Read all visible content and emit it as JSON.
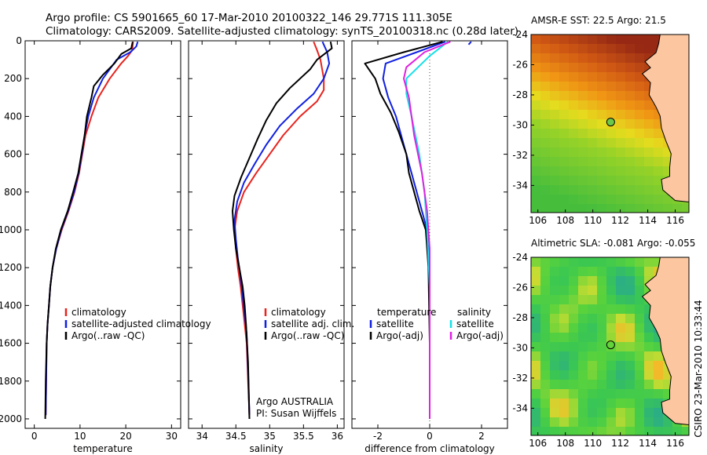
{
  "header": {
    "title_line1": "Argo profile: CS 5901665_60 17-Mar-2010 20100322_146 29.771S 111.305E",
    "title_line2": "Climatology: CARS2009. Satellite-adjusted climatology: synTS_20100318.nc (0.28d later)"
  },
  "side_credit": "CSIRO 23-Mar-2010 10:33:44",
  "colors": {
    "climatology": "#e8231e",
    "satellite": "#1020e0",
    "argo": "#000000",
    "satellite_salinity": "#14e0e8",
    "argo_salinity_adj": "#e020e0",
    "land": "#fbc6a0"
  },
  "chart_data": [
    {
      "type": "line",
      "id": "temperature",
      "xlabel": "temperature",
      "ylabel": "",
      "xlim": [
        -2,
        32
      ],
      "ylim": [
        2050,
        0
      ],
      "xticks": [
        0,
        10,
        20,
        30
      ],
      "yticks": [
        0,
        200,
        400,
        600,
        800,
        1000,
        1200,
        1400,
        1600,
        1800,
        2000
      ],
      "legend": [
        "climatology",
        "satellite-adjusted climatology",
        "Argo(..raw -QC)"
      ],
      "legend_placement": "lower-right",
      "series": [
        {
          "name": "climatology",
          "color": "#e8231e",
          "x": [
            21.6,
            21.4,
            20.5,
            19.0,
            16.5,
            14.0,
            12.5,
            11.2,
            10.5,
            9.8,
            8.8,
            7.5,
            6.0,
            4.8,
            4.0,
            3.5,
            3.2,
            2.9,
            2.7,
            2.6,
            2.5
          ],
          "y": [
            5,
            50,
            80,
            120,
            200,
            300,
            400,
            500,
            600,
            700,
            800,
            900,
            1000,
            1100,
            1200,
            1300,
            1400,
            1500,
            1600,
            1800,
            1980
          ]
        },
        {
          "name": "satellite-adjusted climatology",
          "color": "#1020e0",
          "x": [
            22.6,
            22.3,
            21.0,
            18.0,
            15.0,
            13.0,
            11.8,
            11.0,
            10.4,
            9.7,
            8.7,
            7.4,
            5.9,
            4.8,
            4.0,
            3.5,
            3.2,
            2.9,
            2.7,
            2.6,
            2.5
          ],
          "y": [
            5,
            30,
            60,
            100,
            200,
            300,
            400,
            500,
            600,
            700,
            800,
            900,
            1000,
            1100,
            1200,
            1300,
            1400,
            1500,
            1600,
            1800,
            1980
          ]
        },
        {
          "name": "Argo(..raw -QC)",
          "color": "#000000",
          "x": [
            21.5,
            21.2,
            19.0,
            17.5,
            15.0,
            13.0,
            12.5,
            11.5,
            11.0,
            10.3,
            9.6,
            8.5,
            7.3,
            5.8,
            4.7,
            4.0,
            3.5,
            3.2,
            2.9,
            2.7,
            2.5,
            2.4
          ],
          "y": [
            5,
            40,
            70,
            120,
            180,
            240,
            300,
            400,
            500,
            600,
            700,
            800,
            900,
            1000,
            1100,
            1200,
            1300,
            1400,
            1500,
            1600,
            1800,
            2000
          ]
        }
      ]
    },
    {
      "type": "line",
      "id": "salinity",
      "xlabel": "salinity",
      "ylabel": "",
      "xlim": [
        33.8,
        36.1
      ],
      "ylim": [
        2050,
        0
      ],
      "xticks": [
        34,
        34.5,
        35,
        35.5,
        36
      ],
      "legend": [
        "climatology",
        "satellite adj. clim.",
        "Argo(..raw -QC)"
      ],
      "legend_placement": "lower-right",
      "annotation": [
        "Argo AUSTRALIA",
        "PI: Susan Wijffels"
      ],
      "series": [
        {
          "name": "climatology",
          "color": "#e8231e",
          "x": [
            35.65,
            35.7,
            35.75,
            35.8,
            35.8,
            35.7,
            35.45,
            35.2,
            35.0,
            34.8,
            34.62,
            34.52,
            34.48,
            34.5,
            34.53,
            34.57,
            34.6,
            34.63,
            34.66,
            34.68,
            34.7
          ],
          "y": [
            5,
            50,
            100,
            200,
            260,
            320,
            400,
            500,
            600,
            700,
            800,
            900,
            1000,
            1100,
            1200,
            1300,
            1400,
            1500,
            1600,
            1800,
            1980
          ]
        },
        {
          "name": "satellite adj. clim.",
          "color": "#1020e0",
          "x": [
            35.78,
            35.85,
            35.88,
            35.8,
            35.65,
            35.4,
            35.15,
            34.95,
            34.78,
            34.62,
            34.52,
            34.48,
            34.5,
            34.53,
            34.57,
            34.6,
            34.63,
            34.66,
            34.68,
            34.7
          ],
          "y": [
            5,
            60,
            120,
            200,
            280,
            360,
            450,
            550,
            650,
            750,
            850,
            950,
            1050,
            1150,
            1250,
            1350,
            1450,
            1550,
            1750,
            1980
          ]
        },
        {
          "name": "Argo(..raw -QC)",
          "color": "#000000",
          "x": [
            35.9,
            35.92,
            35.7,
            35.6,
            35.45,
            35.3,
            35.1,
            34.95,
            34.82,
            34.7,
            34.58,
            34.48,
            34.45,
            34.47,
            34.5,
            34.55,
            34.6,
            34.63,
            34.65,
            34.68,
            34.7
          ],
          "y": [
            5,
            40,
            100,
            150,
            200,
            250,
            330,
            420,
            520,
            620,
            720,
            820,
            900,
            1000,
            1100,
            1200,
            1300,
            1400,
            1500,
            1700,
            2000
          ]
        }
      ]
    },
    {
      "type": "line",
      "id": "difference",
      "xlabel": "difference from climatology",
      "ylabel": "",
      "xlim": [
        -3,
        3
      ],
      "ylim": [
        2050,
        0
      ],
      "xticks": [
        -2,
        0,
        2
      ],
      "reference_line": 0,
      "legend_left": {
        "title": "temperature",
        "items": [
          "satellite",
          "Argo(-adj)"
        ]
      },
      "legend_right": {
        "title": "salinity",
        "items": [
          "satellite",
          "Argo(-adj)"
        ]
      },
      "series": [
        {
          "name": "temperature satellite",
          "color": "#1020e0",
          "x": [
            0.6,
            -0.5,
            -1.7,
            -1.8,
            -1.6,
            -1.3,
            -1.1,
            -0.9,
            -0.7,
            -0.5,
            -0.3,
            -0.1,
            0.0,
            0.0,
            0.0,
            0.0
          ],
          "y": [
            5,
            60,
            120,
            200,
            300,
            400,
            500,
            600,
            700,
            800,
            900,
            1000,
            1200,
            1500,
            1800,
            2000
          ]
        },
        {
          "name": "temperature Argo(-adj)",
          "color": "#000000",
          "x": [
            0.5,
            -1.0,
            -2.5,
            -2.1,
            -1.9,
            -1.5,
            -1.2,
            -0.9,
            -0.8,
            -0.6,
            -0.4,
            -0.15,
            -0.05,
            0.0,
            0.0
          ],
          "y": [
            5,
            60,
            120,
            200,
            280,
            380,
            480,
            600,
            700,
            800,
            900,
            1000,
            1200,
            1600,
            2000
          ]
        },
        {
          "name": "salinity satellite",
          "color": "#14e0e8",
          "x": [
            0.7,
            0.0,
            -0.9,
            -0.9,
            -0.7,
            -0.4,
            -0.2,
            -0.1,
            0.0,
            0.0,
            0.0
          ],
          "y": [
            5,
            80,
            200,
            280,
            400,
            600,
            800,
            1000,
            1300,
            1700,
            2000
          ]
        },
        {
          "name": "salinity Argo(-adj)",
          "color": "#e020e0",
          "x": [
            0.8,
            -0.2,
            -0.9,
            -1.0,
            -0.8,
            -0.6,
            -0.3,
            -0.1,
            0.0,
            0.0,
            0.0
          ],
          "y": [
            5,
            60,
            140,
            200,
            300,
            500,
            700,
            900,
            1100,
            1500,
            2000
          ]
        },
        {
          "name": "temperature satellite (deep)",
          "color": "#1020e0",
          "x": [
            1.6,
            1.5
          ],
          "y": [
            5,
            20
          ]
        }
      ]
    },
    {
      "type": "heatmap",
      "id": "sst_map",
      "title": "AMSR-E SST: 22.5  Argo: 21.5",
      "xlim": [
        105.5,
        117
      ],
      "ylim": [
        -35.8,
        -24
      ],
      "xticks": [
        106,
        108,
        110,
        112,
        114,
        116
      ],
      "yticks": [
        -24,
        -26,
        -28,
        -30,
        -32,
        -34
      ],
      "marker": {
        "lon": 111.3,
        "lat": -29.8
      }
    },
    {
      "type": "heatmap",
      "id": "sla_map",
      "title": "Altimetric SLA: -0.081  Argo: -0.055",
      "xlim": [
        105.5,
        117
      ],
      "ylim": [
        -35.8,
        -24
      ],
      "xticks": [
        106,
        108,
        110,
        112,
        114,
        116
      ],
      "yticks": [
        -24,
        -26,
        -28,
        -30,
        -32,
        -34
      ],
      "marker": {
        "lon": 111.3,
        "lat": -29.8
      }
    }
  ]
}
